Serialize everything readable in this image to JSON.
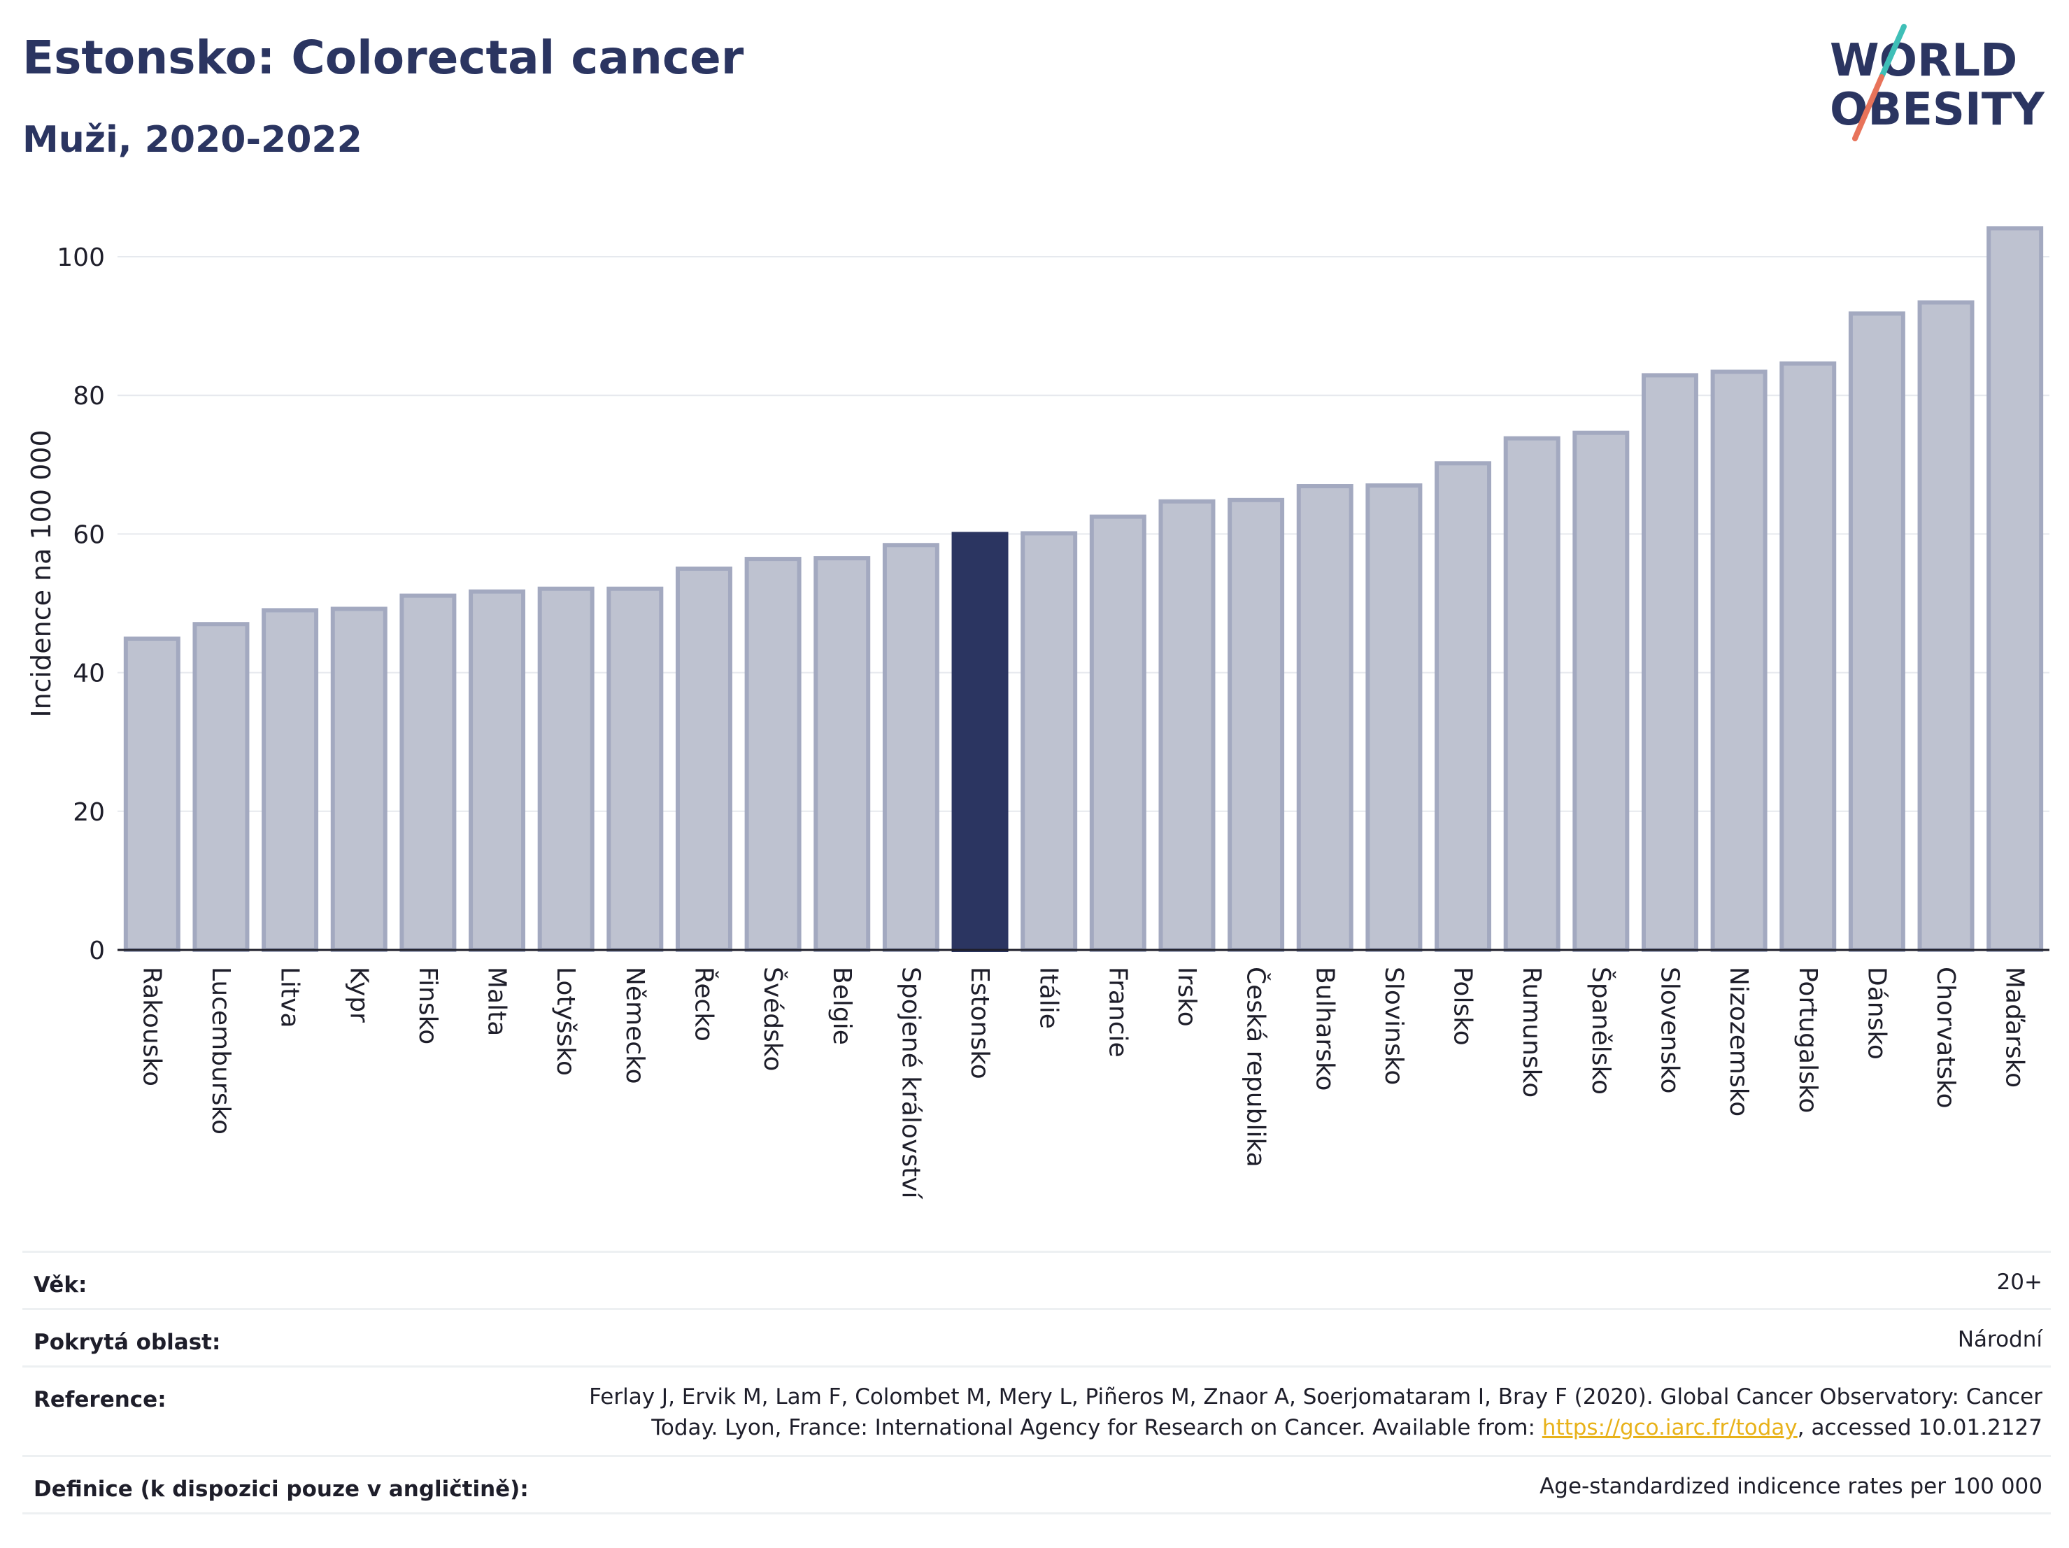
{
  "header": {
    "title": "Estonsko: Colorectal cancer",
    "subtitle": "Muži, 2020-2022"
  },
  "logo": {
    "line1": "WORLD",
    "line2": "OBESITY",
    "icon": "world-obesity-logo"
  },
  "colors": {
    "bar": "#bec2d0",
    "bar_edge": "#a3a9c0",
    "highlight": "#2b3561",
    "grid": "#e6e9ee",
    "axis": "#1e1e2a"
  },
  "chart_data": {
    "type": "bar",
    "ylabel": "Incidence na 100 000",
    "ylim": [
      0,
      105
    ],
    "yticks": [
      0,
      20,
      40,
      60,
      80,
      100
    ],
    "grid": true,
    "highlight": "Estonsko",
    "categories": [
      "Rakousko",
      "Lucembursko",
      "Litva",
      "Kypr",
      "Finsko",
      "Malta",
      "Lotyšsko",
      "Německo",
      "Řecko",
      "Švédsko",
      "Belgie",
      "Spojené království",
      "Estonsko",
      "Itálie",
      "Francie",
      "Irsko",
      "Česká republika",
      "Bulharsko",
      "Slovinsko",
      "Polsko",
      "Rumunsko",
      "Španělsko",
      "Slovensko",
      "Nizozemsko",
      "Portugalsko",
      "Dánsko",
      "Chorvatsko",
      "Maďarsko"
    ],
    "values": [
      44.9,
      47.0,
      49.0,
      49.2,
      51.1,
      51.7,
      52.1,
      52.1,
      55.0,
      56.4,
      56.5,
      58.4,
      60.0,
      60.1,
      62.5,
      64.7,
      64.9,
      66.9,
      67.0,
      70.2,
      73.8,
      74.6,
      82.9,
      83.4,
      84.6,
      91.8,
      93.4,
      104.1
    ]
  },
  "meta": {
    "age_label": "Věk:",
    "age_value": "20+",
    "area_label": "Pokrytá oblast:",
    "area_value": "Národní",
    "ref_label": "Reference:",
    "ref_line1": "Ferlay J, Ervik M, Lam F, Colombet M, Mery L, Piñeros M, Znaor A, Soerjomataram I, Bray F (2020). Global Cancer Observatory: Cancer",
    "ref_line2_pre": "Today. Lyon, France: International Agency for Research on Cancer. Available from: ",
    "ref_link": "https://gco.iarc.fr/today",
    "ref_line2_post": ", accessed 10.01.2127",
    "def_label": "Definice (k dispozici pouze v angličtině):",
    "def_value": "Age-standardized indicence rates per 100 000"
  }
}
